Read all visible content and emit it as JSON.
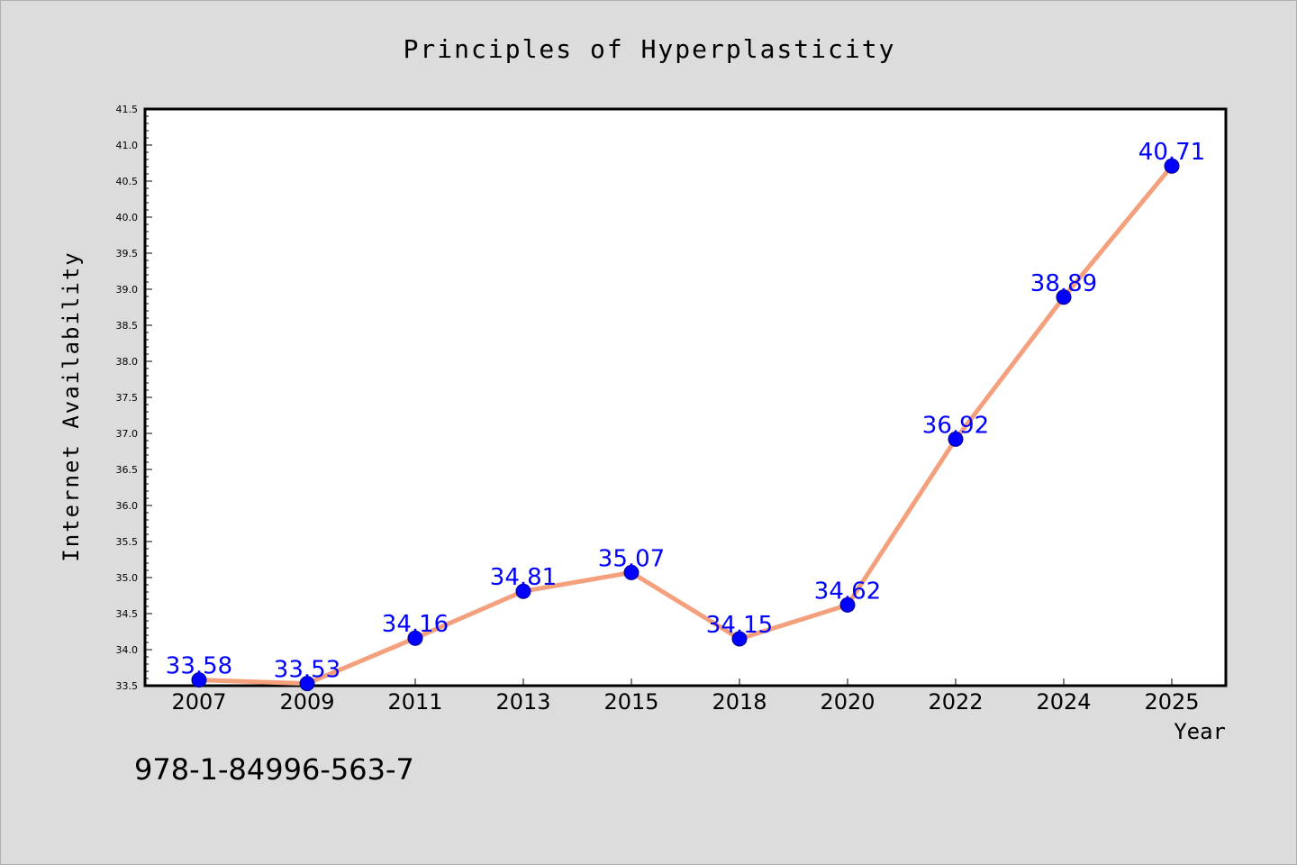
{
  "chart_data": {
    "type": "line",
    "title": "Principles of Hyperplasticity",
    "xlabel": "Year",
    "ylabel": "Internet Availability",
    "categories": [
      "2007",
      "2009",
      "2011",
      "2013",
      "2015",
      "2018",
      "2020",
      "2022",
      "2024",
      "2025"
    ],
    "series": [
      {
        "values": [
          33.58,
          33.53,
          34.16,
          34.81,
          35.07,
          34.15,
          34.62,
          36.92,
          38.89,
          40.71
        ],
        "data_labels": [
          "33.58",
          "33.53",
          "34.16",
          "34.81",
          "35.07",
          "34.15",
          "34.62",
          "36.92",
          "38.89",
          "40.71"
        ],
        "line_color": "#f4a07c",
        "marker_color": "#0000ff"
      }
    ],
    "ylim": [
      33.5,
      41.5
    ],
    "yticks": [
      "33.5",
      "34.0",
      "34.5",
      "35.0",
      "35.5",
      "36.0",
      "36.5",
      "37.0",
      "37.5",
      "38.0",
      "38.5",
      "39.0",
      "39.5",
      "40.0",
      "40.5",
      "41.0",
      "41.5"
    ],
    "grid": false,
    "legend": "none"
  },
  "footer": {
    "code": "978-1-84996-563-7"
  },
  "colors": {
    "background": "#dcdcdc",
    "plot_background": "#ffffff",
    "line": "#f4a07c",
    "marker": "#0000ff",
    "data_label": "#0000ff"
  }
}
